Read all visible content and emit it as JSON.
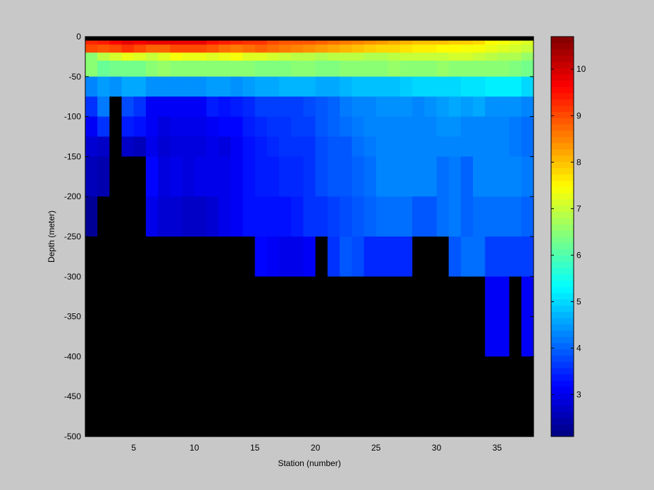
{
  "chart_data": {
    "type": "heatmap",
    "title": "",
    "xlabel": "Station (number)",
    "ylabel": "Depth (meter)",
    "xlim": [
      1,
      38
    ],
    "ylim": [
      -500,
      0
    ],
    "x_ticks": [
      5,
      10,
      15,
      20,
      25,
      30,
      35
    ],
    "y_ticks": [
      0,
      -50,
      -100,
      -150,
      -200,
      -250,
      -300,
      -350,
      -400,
      -450,
      -500
    ],
    "colormap": "jet",
    "clim": [
      2.1,
      10.7
    ],
    "colorbar_ticks": [
      3,
      4,
      5,
      6,
      7,
      8,
      9,
      10
    ],
    "no_data_color": "#000000",
    "background_color": "#c8c8c8",
    "cell_width_stations": 1,
    "x_edges_start": 1,
    "depth_edges": [
      0,
      -5,
      -10,
      -20,
      -30,
      -50,
      -75,
      -100,
      -125,
      -150,
      -200,
      -250,
      -300,
      -400,
      -500
    ],
    "rows": [
      [
        null,
        null,
        null,
        null,
        null,
        null,
        null,
        null,
        null,
        null,
        null,
        null,
        null,
        null,
        null,
        null,
        null,
        null,
        null,
        null,
        null,
        null,
        null,
        null,
        null,
        null,
        null,
        null,
        null,
        null,
        null,
        null,
        null,
        null,
        null,
        null,
        null
      ],
      [
        9.3,
        9.4,
        9.6,
        9.8,
        9.7,
        9.8,
        9.8,
        9.8,
        9.8,
        9.8,
        9.5,
        9.4,
        9.3,
        9.2,
        9.2,
        9.0,
        8.9,
        8.9,
        8.9,
        8.8,
        8.7,
        8.6,
        8.5,
        8.4,
        8.3,
        8.2,
        8.1,
        8.0,
        8.0,
        8.0,
        7.9,
        7.9,
        7.8,
        7.5,
        7.4,
        7.3,
        7.2
      ],
      [
        9.0,
        8.9,
        9.0,
        9.2,
        9.0,
        8.8,
        8.8,
        9.0,
        9.0,
        9.0,
        8.9,
        8.7,
        8.6,
        8.7,
        8.8,
        8.7,
        8.6,
        8.5,
        8.4,
        8.3,
        8.2,
        8.1,
        8.0,
        7.9,
        7.8,
        7.8,
        7.7,
        7.6,
        7.6,
        7.5,
        7.5,
        7.4,
        7.4,
        7.3,
        7.2,
        7.1,
        7.0
      ],
      [
        6.5,
        6.9,
        7.1,
        7.3,
        7.2,
        7.0,
        7.2,
        7.4,
        7.3,
        7.3,
        7.2,
        7.3,
        7.4,
        7.2,
        7.2,
        7.1,
        7.0,
        6.9,
        6.9,
        6.8,
        6.9,
        6.9,
        6.9,
        6.8,
        6.8,
        6.9,
        7.0,
        7.0,
        7.0,
        7.0,
        7.1,
        7.1,
        7.0,
        6.9,
        6.8,
        6.8,
        6.6
      ],
      [
        6.5,
        6.2,
        6.3,
        6.3,
        6.3,
        6.5,
        6.6,
        6.5,
        6.5,
        6.5,
        6.5,
        6.5,
        6.5,
        6.5,
        6.4,
        6.4,
        6.4,
        6.5,
        6.5,
        6.4,
        6.4,
        6.5,
        6.5,
        6.5,
        6.5,
        6.6,
        6.5,
        6.5,
        6.5,
        6.6,
        6.5,
        6.5,
        6.5,
        6.5,
        6.5,
        6.4,
        6.3
      ],
      [
        4.3,
        4.5,
        4.4,
        4.6,
        4.6,
        4.4,
        4.4,
        4.4,
        4.4,
        4.4,
        4.5,
        4.5,
        4.4,
        4.5,
        4.6,
        4.6,
        4.7,
        4.7,
        4.7,
        4.6,
        4.6,
        4.7,
        4.8,
        4.8,
        4.8,
        4.8,
        4.9,
        5.0,
        5.0,
        5.0,
        5.0,
        5.1,
        5.1,
        5.2,
        5.2,
        5.2,
        5.0
      ],
      [
        3.6,
        4.2,
        null,
        3.8,
        3.6,
        3.1,
        3.1,
        3.1,
        3.1,
        3.1,
        3.4,
        3.3,
        3.4,
        3.5,
        3.7,
        3.7,
        3.7,
        3.7,
        3.8,
        3.9,
        4.0,
        4.2,
        4.3,
        4.3,
        4.4,
        4.4,
        4.4,
        4.3,
        4.4,
        4.5,
        4.6,
        4.5,
        4.6,
        4.4,
        4.4,
        4.4,
        4.3
      ],
      [
        3.1,
        3.6,
        null,
        3.4,
        3.3,
        3.1,
        2.9,
        3.0,
        3.0,
        3.0,
        3.1,
        3.2,
        3.2,
        3.4,
        3.5,
        3.6,
        3.6,
        3.7,
        3.7,
        3.9,
        4.0,
        4.1,
        4.2,
        4.3,
        4.3,
        4.3,
        4.3,
        4.3,
        4.3,
        4.4,
        4.4,
        4.3,
        4.3,
        4.3,
        4.3,
        4.2,
        4.1
      ],
      [
        2.8,
        2.7,
        null,
        2.7,
        2.6,
        3.0,
        2.8,
        2.9,
        2.9,
        2.9,
        3.0,
        2.9,
        3.1,
        3.3,
        3.4,
        3.5,
        3.6,
        3.6,
        3.6,
        3.8,
        3.9,
        3.9,
        4.1,
        4.2,
        4.3,
        4.3,
        4.3,
        4.3,
        4.3,
        4.3,
        4.3,
        4.3,
        4.3,
        4.3,
        4.3,
        4.2,
        4.1
      ],
      [
        2.6,
        2.5,
        null,
        null,
        null,
        3.2,
        2.9,
        3.0,
        2.9,
        3.0,
        3.0,
        3.0,
        3.1,
        3.3,
        3.4,
        3.4,
        3.5,
        3.5,
        3.6,
        3.8,
        3.9,
        3.9,
        4.0,
        4.1,
        4.3,
        4.3,
        4.3,
        4.3,
        4.3,
        4.1,
        4.2,
        4.0,
        4.3,
        4.3,
        4.3,
        4.3,
        4.2
      ],
      [
        2.3,
        null,
        null,
        null,
        null,
        3.0,
        2.8,
        2.8,
        2.7,
        2.7,
        2.8,
        3.0,
        3.1,
        3.3,
        3.3,
        3.3,
        3.3,
        3.4,
        3.6,
        3.6,
        3.7,
        3.8,
        3.9,
        4.0,
        4.1,
        4.1,
        4.1,
        3.9,
        3.9,
        4.1,
        4.2,
        4.0,
        4.1,
        4.1,
        4.1,
        4.1,
        4.0
      ],
      [
        null,
        null,
        null,
        null,
        null,
        null,
        null,
        null,
        null,
        null,
        null,
        null,
        null,
        null,
        3.2,
        3.1,
        3.0,
        3.0,
        3.1,
        null,
        3.6,
        3.9,
        3.8,
        3.5,
        3.5,
        3.5,
        3.5,
        null,
        null,
        null,
        3.9,
        4.1,
        4.1,
        3.7,
        3.7,
        3.7,
        3.7
      ],
      [
        null,
        null,
        null,
        null,
        null,
        null,
        null,
        null,
        null,
        null,
        null,
        null,
        null,
        null,
        null,
        null,
        null,
        null,
        null,
        null,
        null,
        null,
        null,
        null,
        null,
        null,
        null,
        null,
        null,
        null,
        null,
        null,
        null,
        3.1,
        3.1,
        null,
        3.1
      ],
      [
        null,
        null,
        null,
        null,
        null,
        null,
        null,
        null,
        null,
        null,
        null,
        null,
        null,
        null,
        null,
        null,
        null,
        null,
        null,
        null,
        null,
        null,
        null,
        null,
        null,
        null,
        null,
        null,
        null,
        null,
        null,
        null,
        null,
        null,
        null,
        null,
        null
      ]
    ]
  }
}
